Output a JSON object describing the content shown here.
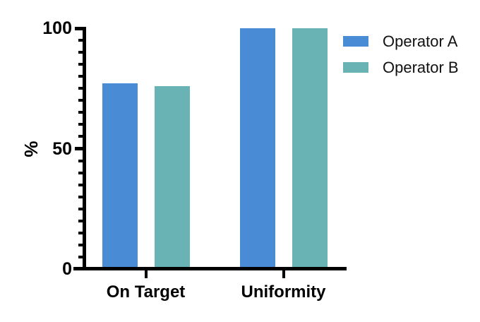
{
  "chart_data": {
    "type": "bar",
    "title": "",
    "categories": [
      "On Target",
      "Uniformity"
    ],
    "series": [
      {
        "name": "Operator A",
        "color": "#4A8BD5",
        "values": [
          77,
          100
        ]
      },
      {
        "name": "Operator B",
        "color": "#6AB3B4",
        "values": [
          76,
          100
        ]
      }
    ],
    "ylabel": "%",
    "ylim": [
      0,
      100
    ],
    "ytick_values": [
      0,
      50,
      100
    ],
    "ytick_labels": [
      "0",
      "50",
      "100"
    ],
    "minor_tick_step": 5,
    "grid": false,
    "legend_position": "top-right"
  },
  "colors": {
    "axis": "#000000",
    "text": "#000000",
    "background": "#FFFFFF"
  }
}
